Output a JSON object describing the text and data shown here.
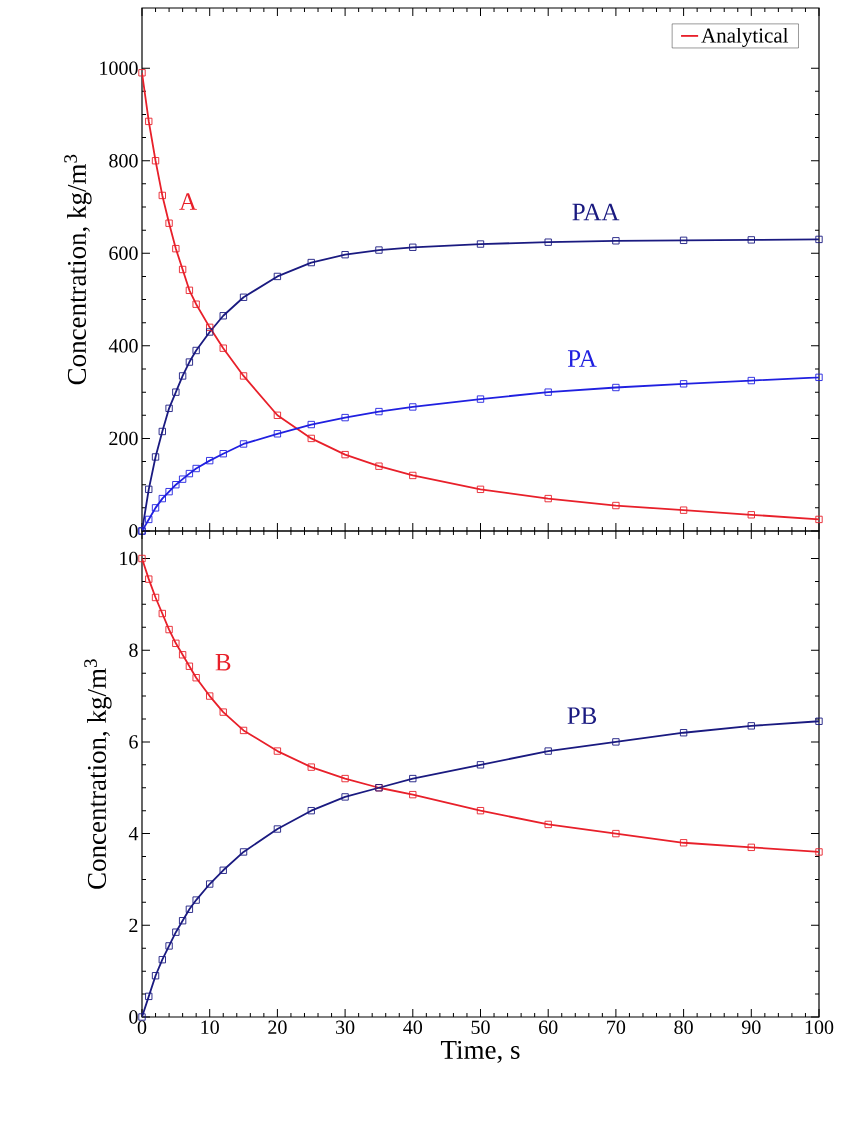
{
  "chart_data": [
    {
      "type": "line",
      "ylabel": "Concentration, kg/m$^{3}$",
      "xlim": [
        0,
        100
      ],
      "ylim": [
        0,
        1130
      ],
      "xticks": [
        0,
        10,
        20,
        30,
        40,
        50,
        60,
        70,
        80,
        90,
        100
      ],
      "yticks": [
        0,
        200,
        400,
        600,
        800,
        1000
      ],
      "tick_labels": "y",
      "legend": "top right",
      "grid": false,
      "x": [
        0,
        1,
        2,
        3,
        4,
        5,
        6,
        7,
        8,
        10,
        12,
        15,
        20,
        25,
        30,
        35,
        40,
        50,
        60,
        70,
        80,
        90,
        100
      ],
      "series": [
        {
          "name": "Analytical",
          "color": "#e8202a",
          "line_style": "solid",
          "values": [
            990,
            885,
            800,
            725,
            665,
            610,
            565,
            520,
            490,
            440,
            395,
            335,
            250,
            200,
            165,
            140,
            120,
            90,
            70,
            55,
            45,
            35,
            25
          ]
        },
        {
          "type": "scatter",
          "marker": "square",
          "color": "#e8202a",
          "values": [
            990,
            885,
            800,
            725,
            665,
            610,
            565,
            520,
            490,
            440,
            395,
            335,
            250,
            200,
            165,
            140,
            120,
            90,
            70,
            55,
            45,
            35,
            25
          ]
        },
        {
          "color": "#1a1a80",
          "line_style": "solid",
          "values": [
            0,
            90,
            160,
            215,
            265,
            300,
            335,
            365,
            390,
            430,
            465,
            505,
            550,
            580,
            597,
            607,
            613,
            620,
            624,
            627,
            628,
            629,
            630
          ]
        },
        {
          "type": "scatter",
          "marker": "square",
          "color": "#1a1a80",
          "values": [
            0,
            90,
            160,
            215,
            265,
            300,
            335,
            365,
            390,
            430,
            465,
            505,
            550,
            580,
            597,
            607,
            613,
            620,
            624,
            627,
            628,
            629,
            630
          ]
        },
        {
          "color": "#2020e0",
          "line_style": "solid",
          "values": [
            0,
            25,
            50,
            70,
            85,
            100,
            112,
            124,
            135,
            152,
            167,
            188,
            210,
            230,
            245,
            258,
            268,
            285,
            300,
            310,
            318,
            325,
            332
          ]
        },
        {
          "type": "scatter",
          "marker": "square",
          "color": "#2020e0",
          "values": [
            0,
            25,
            50,
            70,
            85,
            100,
            112,
            124,
            135,
            152,
            167,
            188,
            210,
            230,
            245,
            258,
            268,
            285,
            300,
            310,
            318,
            325,
            332
          ]
        }
      ],
      "annotations": [
        "A",
        "PAA",
        "PA"
      ]
    },
    {
      "type": "line",
      "xlabel": "Time, s",
      "ylabel": "Concentration, kg/m$^{3}$",
      "xlim": [
        0,
        100
      ],
      "ylim": [
        0,
        10.6
      ],
      "xticks": [
        0,
        10,
        20,
        30,
        40,
        50,
        60,
        70,
        80,
        90,
        100
      ],
      "yticks": [
        0,
        2,
        4,
        6,
        8,
        10
      ],
      "grid": false,
      "x": [
        0,
        1,
        2,
        3,
        4,
        5,
        6,
        7,
        8,
        10,
        12,
        15,
        20,
        25,
        30,
        35,
        40,
        50,
        60,
        70,
        80,
        90,
        100
      ],
      "series": [
        {
          "color": "#e8202a",
          "line_style": "solid",
          "values": [
            10,
            9.55,
            9.15,
            8.8,
            8.45,
            8.15,
            7.9,
            7.65,
            7.4,
            7.0,
            6.65,
            6.25,
            5.8,
            5.45,
            5.2,
            5.0,
            4.85,
            4.5,
            4.2,
            4.0,
            3.8,
            3.7,
            3.6
          ]
        },
        {
          "type": "scatter",
          "marker": "square",
          "color": "#e8202a",
          "values": [
            10,
            9.55,
            9.15,
            8.8,
            8.45,
            8.15,
            7.9,
            7.65,
            7.4,
            7.0,
            6.65,
            6.25,
            5.8,
            5.45,
            5.2,
            5.0,
            4.85,
            4.5,
            4.2,
            4.0,
            3.8,
            3.7,
            3.6
          ]
        },
        {
          "color": "#1a1a80",
          "line_style": "solid",
          "values": [
            0,
            0.45,
            0.9,
            1.25,
            1.55,
            1.85,
            2.1,
            2.35,
            2.55,
            2.9,
            3.2,
            3.6,
            4.1,
            4.5,
            4.8,
            5.0,
            5.2,
            5.5,
            5.8,
            6.0,
            6.2,
            6.35,
            6.45
          ]
        },
        {
          "type": "scatter",
          "marker": "square",
          "color": "#1a1a80",
          "values": [
            0,
            0.45,
            0.9,
            1.25,
            1.55,
            1.85,
            2.1,
            2.35,
            2.55,
            2.9,
            3.2,
            3.6,
            4.1,
            4.5,
            4.8,
            5.0,
            5.2,
            5.5,
            5.8,
            6.0,
            6.2,
            6.35,
            6.45
          ]
        }
      ],
      "annotations": [
        "B",
        "PB"
      ]
    }
  ]
}
